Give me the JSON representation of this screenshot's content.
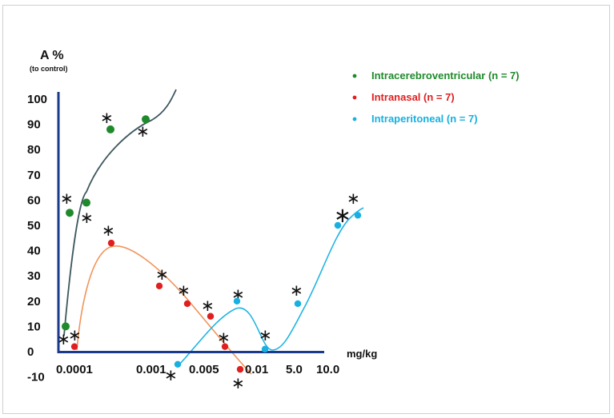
{
  "chart_data": {
    "type": "line",
    "ylabel": "A %",
    "ylabel_sub": "(to control)",
    "xlabel": "mg/kg",
    "yticks": [
      "100",
      "90",
      "80",
      "70",
      "60",
      "50",
      "40",
      "30",
      "20",
      "10",
      "0",
      "-10"
    ],
    "y_range": [
      -10,
      100
    ],
    "x_categories": [
      "0.0001",
      "0.001",
      "0.005",
      "0.01",
      "5.0",
      "10.0"
    ],
    "grid": false,
    "legend_position": "top-right",
    "series": [
      {
        "name": "Intracerebroventricular (n = 7)",
        "color": "#1f8a2c",
        "curve_color": "#3e5860",
        "points": [
          {
            "x": "0.0001",
            "y": 10,
            "significant": true
          },
          {
            "x": "0.0001",
            "y": 55,
            "significant": true
          },
          {
            "x": "0.0001",
            "y": 59,
            "significant": true
          },
          {
            "x": "0.0001",
            "y": 88,
            "significant": true
          },
          {
            "x": "0.001",
            "y": 92,
            "significant": true
          }
        ]
      },
      {
        "name": "Intranasal (n = 7)",
        "color": "#e02020",
        "curve_color": "#f0945a",
        "points": [
          {
            "x": "0.0001",
            "y": 2,
            "significant": true
          },
          {
            "x": "0.0001",
            "y": 43,
            "significant": true
          },
          {
            "x": "0.001",
            "y": 26,
            "significant": true
          },
          {
            "x": "0.005",
            "y": 19,
            "significant": true
          },
          {
            "x": "0.005",
            "y": 14,
            "significant": true
          },
          {
            "x": "0.005",
            "y": 2,
            "significant": true
          },
          {
            "x": "0.01",
            "y": -7,
            "significant": true
          }
        ]
      },
      {
        "name": "Intraperitoneal (n = 7)",
        "color": "#18b0e0",
        "curve_color": "#20b4e4",
        "points": [
          {
            "x": "0.005",
            "y": -5,
            "significant": true
          },
          {
            "x": "0.01",
            "y": 20,
            "significant": true
          },
          {
            "x": "0.01",
            "y": 1,
            "significant": true
          },
          {
            "x": "5.0",
            "y": 19,
            "significant": true
          },
          {
            "x": "10.0",
            "y": 50,
            "significant": true
          },
          {
            "x": "10.0",
            "y": 54,
            "significant": true
          }
        ]
      }
    ]
  }
}
